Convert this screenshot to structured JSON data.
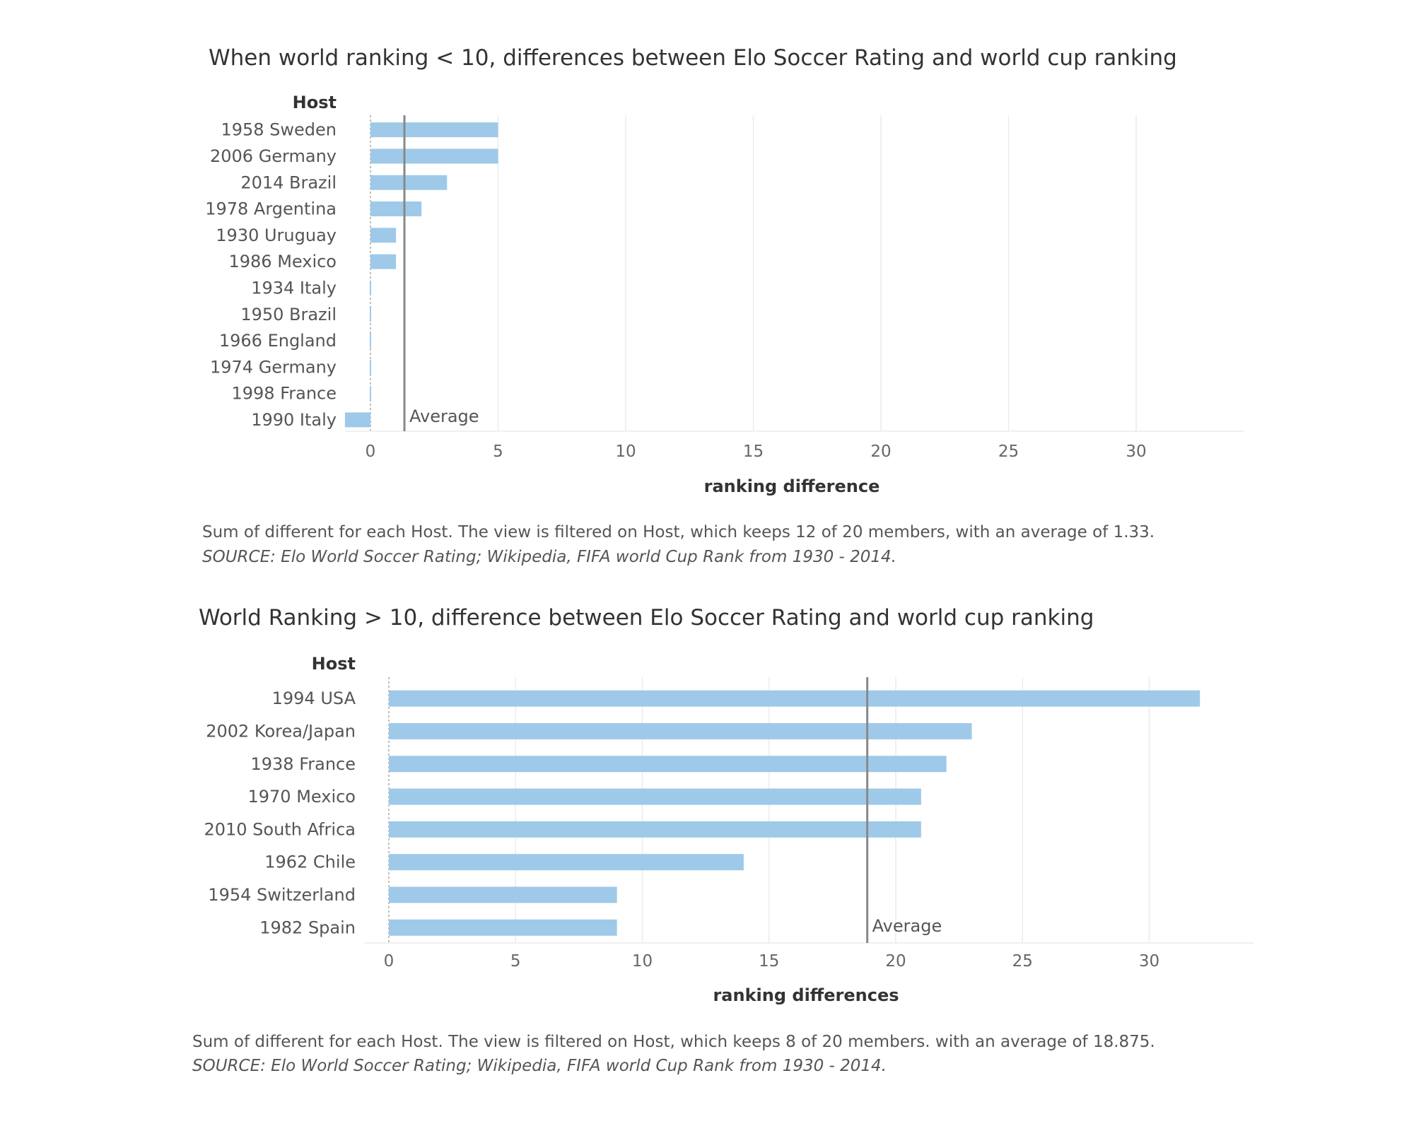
{
  "chart_data": [
    {
      "type": "bar",
      "orientation": "horizontal",
      "title": "When world ranking < 10,  differences between Elo Soccer Rating and world cup ranking",
      "row_header": "Host",
      "xlabel": "ranking difference",
      "categories": [
        "1958 Sweden",
        "2006 Germany",
        "2014 Brazil",
        "1978 Argentina",
        "1930 Uruguay",
        "1986 Mexico",
        "1934 Italy",
        "1950 Brazil",
        "1966 England",
        "1974 Germany",
        "1998 France",
        "1990 Italy"
      ],
      "values": [
        5,
        5,
        3,
        2,
        1,
        1,
        0,
        0,
        0,
        0,
        0,
        -1
      ],
      "xlim": [
        -1,
        34
      ],
      "xticks": [
        0,
        5,
        10,
        15,
        20,
        25,
        30
      ],
      "grid": true,
      "reference_line": {
        "label": "Average",
        "value": 1.33
      },
      "bar_color": "#9fc9e8",
      "caption": "Sum of different for each Host. The view is filtered on Host, which keeps 12 of 20 members, with an average of 1.33.",
      "source": "SOURCE: Elo World Soccer Rating; Wikipedia, FIFA world Cup Rank from 1930 - 2014."
    },
    {
      "type": "bar",
      "orientation": "horizontal",
      "title": "World Ranking > 10, difference between Elo Soccer Rating and world cup ranking",
      "row_header": "Host",
      "xlabel": "ranking differences",
      "categories": [
        "1994 USA",
        "2002 Korea/Japan",
        "1938 France",
        "1970 Mexico",
        "2010 South Africa",
        "1962 Chile",
        "1954 Switzerland",
        "1982 Spain"
      ],
      "values": [
        32,
        23,
        22,
        21,
        21,
        14,
        9,
        9
      ],
      "xlim": [
        -1,
        34
      ],
      "xticks": [
        0,
        5,
        10,
        15,
        20,
        25,
        30
      ],
      "grid": true,
      "reference_line": {
        "label": "Average",
        "value": 18.875
      },
      "bar_color": "#9fc9e8",
      "caption": "Sum of different for each Host. The view is filtered on Host, which keeps 8 of 20 members. with an average of 18.875.",
      "source": "SOURCE: Elo World Soccer Rating; Wikipedia, FIFA world Cup Rank from 1930 - 2014."
    }
  ]
}
